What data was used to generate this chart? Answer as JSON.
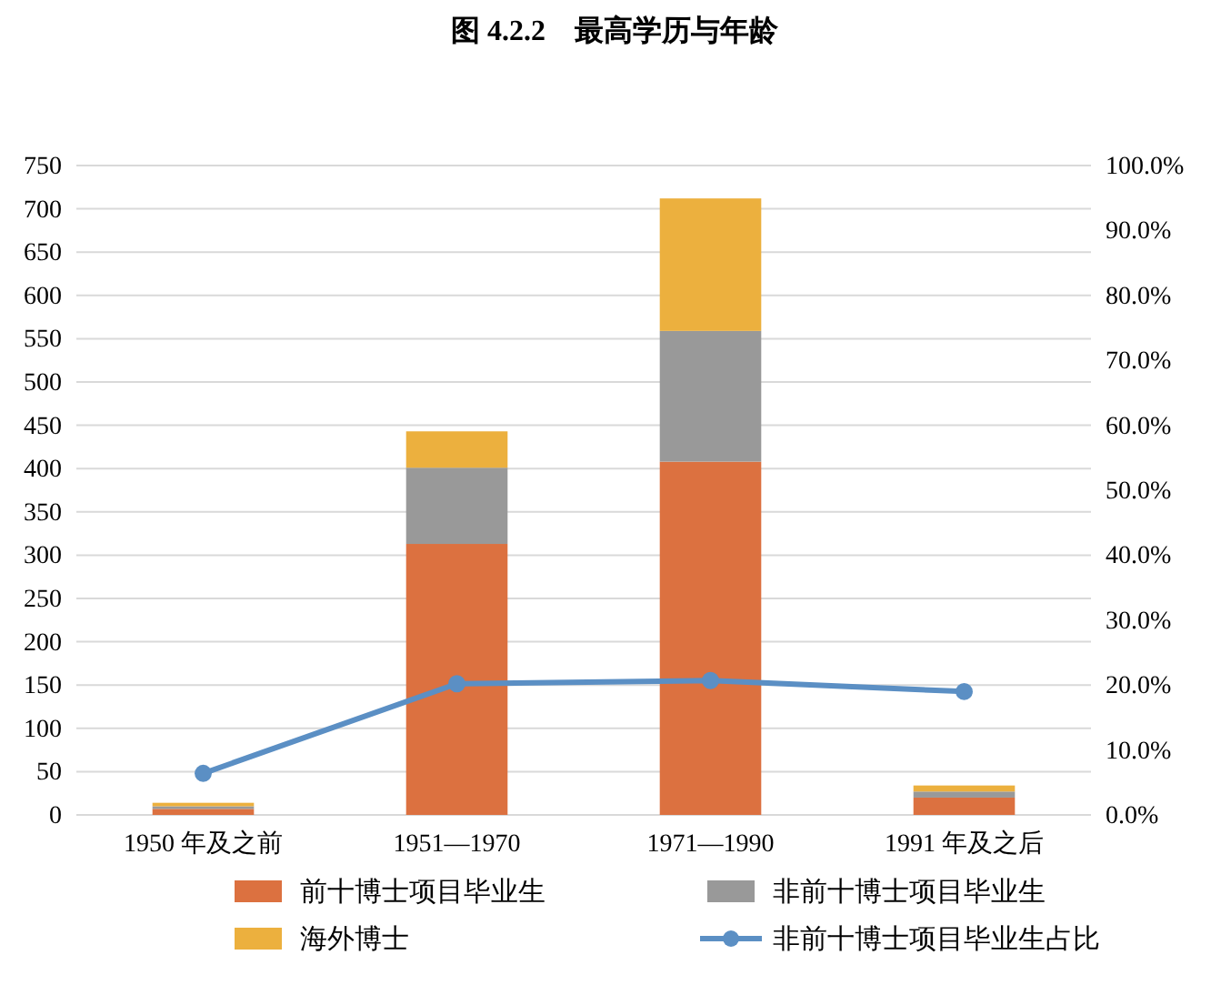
{
  "chart_data": {
    "type": "bar",
    "title": "图 4.2.2　最高学历与年龄",
    "categories": [
      "1950 年及之前",
      "1951—1970",
      "1971—1990",
      "1991 年及之后"
    ],
    "stacked": true,
    "series": [
      {
        "name": "前十博士项目毕业生",
        "color": "#dc7140",
        "values": [
          7,
          313,
          408,
          20
        ]
      },
      {
        "name": "非前十博士项目毕业生",
        "color": "#999999",
        "values": [
          3,
          88,
          151,
          7
        ]
      },
      {
        "name": "海外博士",
        "color": "#ecb03e",
        "values": [
          4,
          42,
          153,
          7
        ]
      },
      {
        "name": "非前十博士项目毕业生占比",
        "type": "line",
        "axis": "y2",
        "color": "#5b8fc4",
        "values": [
          6.4,
          20.2,
          20.7,
          19.0
        ]
      }
    ],
    "ylim": [
      0,
      750
    ],
    "yticks": [
      0,
      50,
      100,
      150,
      200,
      250,
      300,
      350,
      400,
      450,
      500,
      550,
      600,
      650,
      700,
      750
    ],
    "y2lim": [
      0,
      100
    ],
    "y2ticks": [
      {
        "value": 0,
        "label": "0.0%"
      },
      {
        "value": 10,
        "label": "10.0%"
      },
      {
        "value": 20,
        "label": "20.0%"
      },
      {
        "value": 30,
        "label": "30.0%"
      },
      {
        "value": 40,
        "label": "40.0%"
      },
      {
        "value": 50,
        "label": "50.0%"
      },
      {
        "value": 60,
        "label": "60.0%"
      },
      {
        "value": 70,
        "label": "70.0%"
      },
      {
        "value": 80,
        "label": "80.0%"
      },
      {
        "value": 90,
        "label": "90.0%"
      },
      {
        "value": 100,
        "label": "100.0%"
      }
    ],
    "grid": "y",
    "legend": "bottom",
    "marker": "circle",
    "line_style": "solid"
  }
}
